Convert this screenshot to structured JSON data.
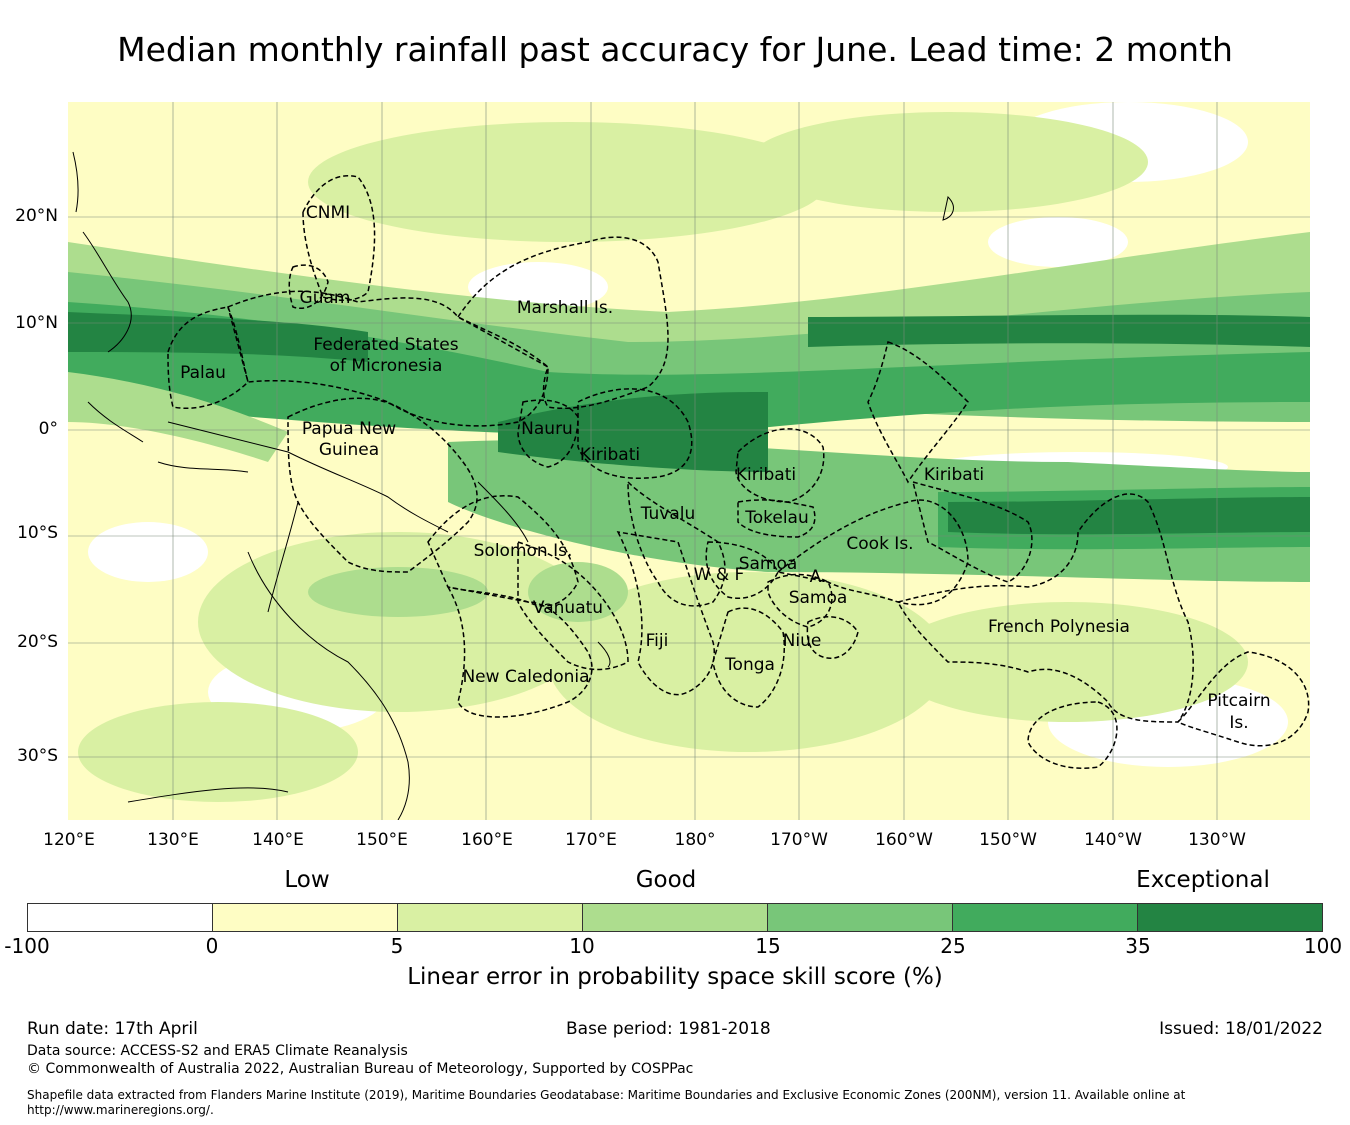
{
  "title": "Median monthly rainfall past accuracy for June. Lead time: 2 month",
  "map": {
    "lat_labels": [
      "20°N",
      "10°N",
      "0°",
      "10°S",
      "20°S",
      "30°S"
    ],
    "lon_labels": [
      "120°E",
      "130°E",
      "140°E",
      "150°E",
      "160°E",
      "170°E",
      "180°",
      "170°W",
      "160°W",
      "150°W",
      "140°W",
      "130°W"
    ],
    "regions": [
      "CNMI",
      "Guam",
      "Marshall Is.",
      "Federated States",
      "of Micronesia",
      "Palau",
      "Papua New",
      "Guinea",
      "Nauru",
      "Kiribati",
      "Kiribati",
      "Kiribati",
      "Tuvalu",
      "Tokelau",
      "Cook Is.",
      "Solomon Is.",
      "Samoa",
      "W & F",
      "A.",
      "Samoa",
      "Vanuatu",
      "Fiji",
      "Niue",
      "Tonga",
      "French Polynesia",
      "New Caledonia",
      "Pitcairn",
      "Is."
    ],
    "colors": {
      "land_line": "#000000",
      "grid": "#7a8a7a",
      "eez": "#000000"
    }
  },
  "legend": {
    "categories": [
      "Low",
      "Good",
      "Exceptional"
    ],
    "colors": [
      "#ffffff",
      "#fefdc4",
      "#d9f0a3",
      "#addd8e",
      "#78c679",
      "#41ab5d",
      "#238443"
    ],
    "ticks": [
      "-100",
      "0",
      "5",
      "10",
      "15",
      "25",
      "35",
      "100"
    ],
    "label": "Linear error in probability space skill score (%)"
  },
  "footer": {
    "run_date": "Run date: 17th April",
    "base_period": "Base period: 1981-2018",
    "issued": "Issued: 18/01/2022",
    "data_source": "Data source: ACCESS-S2 and ERA5 Climate Reanalysis",
    "copyright": "© Commonwealth of Australia 2022, Australian Bureau of Meteorology, Supported by COSPPac",
    "shapefile": "Shapefile data extracted from Flanders Marine Institute (2019), Maritime Boundaries Geodatabase: Maritime Boundaries and Exclusive Economic Zones (200NM), version 11. Available online at http://www.marineregions.org/."
  }
}
